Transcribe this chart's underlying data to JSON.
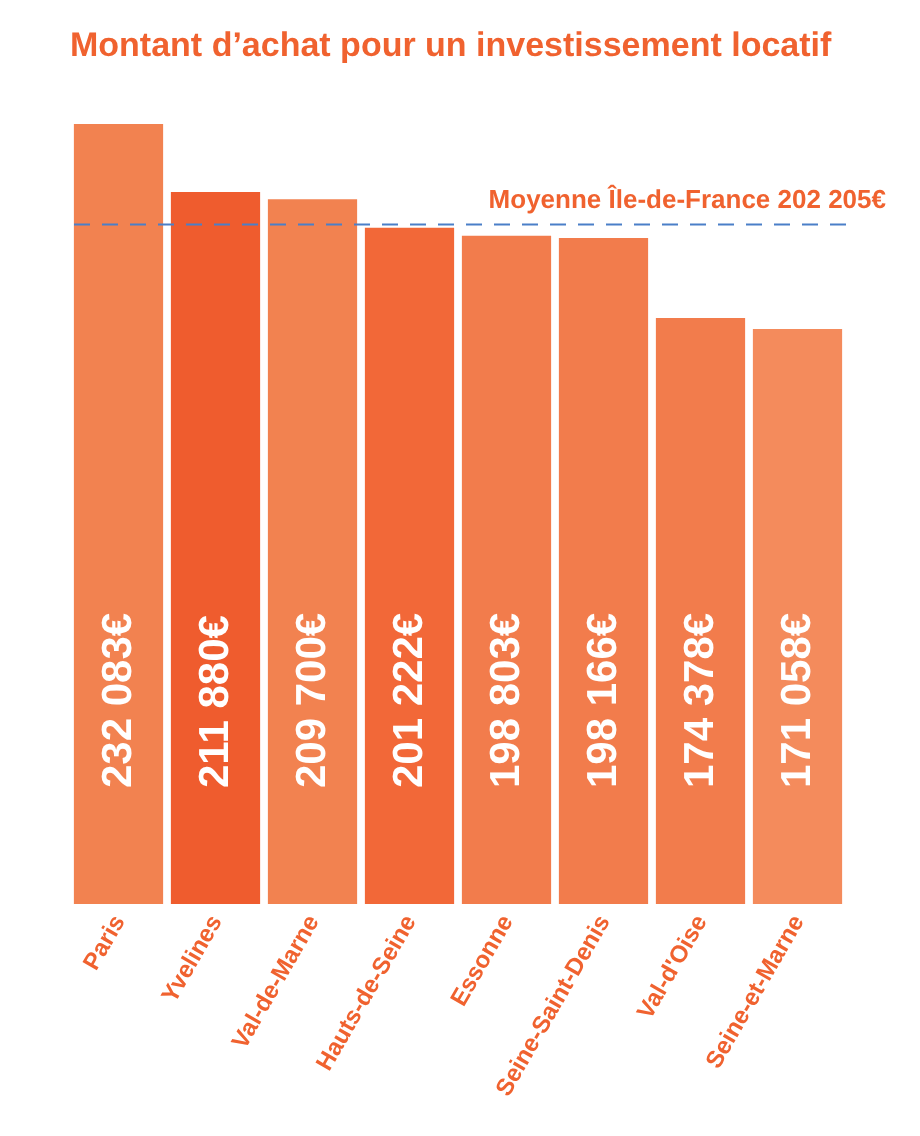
{
  "chart_data": {
    "type": "bar",
    "title": "Montant d’achat pour un investissement locatif",
    "categories": [
      "Paris",
      "Yvelines",
      "Val-de-Marne",
      "Hauts-de-Seine",
      "Essonne",
      "Seine-Saint-Denis",
      "Val-d'Oise",
      "Seine-et-Marne"
    ],
    "values": [
      232083,
      211880,
      209700,
      201222,
      198803,
      198166,
      174378,
      171058
    ],
    "value_labels": [
      "232 083€",
      "211 880€",
      "209 700€",
      "201 222€",
      "198 803€",
      "198 166€",
      "174 378€",
      "171 058€"
    ],
    "colors": [
      "#f28250",
      "#ef5c2e",
      "#f28250",
      "#f26838",
      "#f27c4c",
      "#f27c4c",
      "#f27c4c",
      "#f48b5c"
    ],
    "ylim": [
      0,
      232083
    ],
    "ref_lines": [
      {
        "axis": "y",
        "value": 202205,
        "label": "Moyenne Île-de-France 202 205€",
        "color": "#4a7fc8",
        "line_style": "dashed"
      }
    ],
    "grid": false
  }
}
